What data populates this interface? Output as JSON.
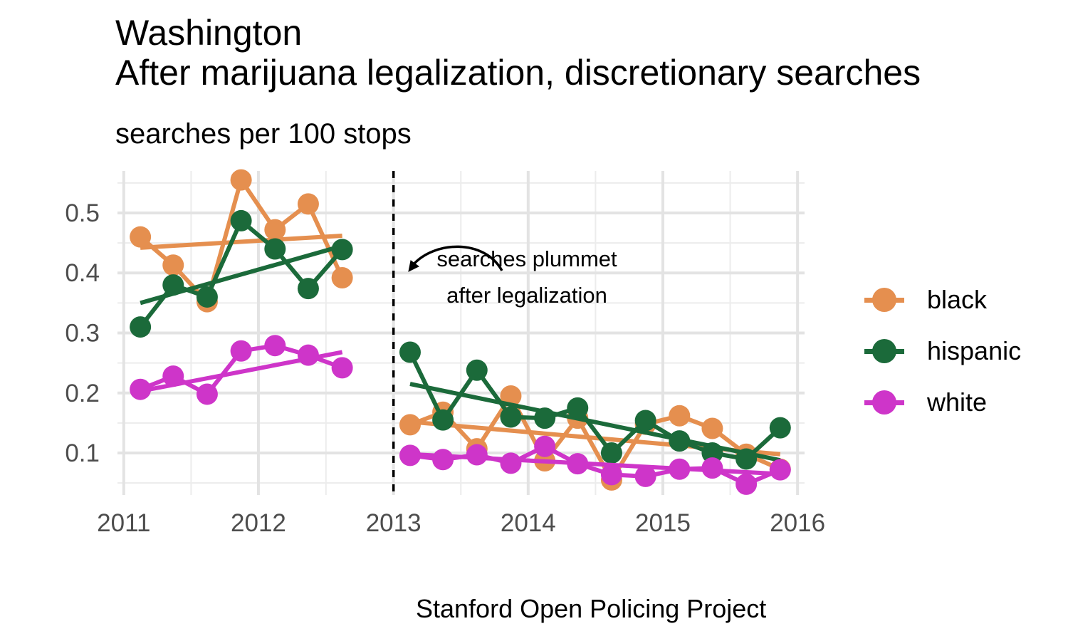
{
  "title": "Washington\nAfter marijuana legalization, discretionary searches",
  "subtitle": "searches per 100 stops",
  "caption": "Stanford Open Policing Project",
  "chart_data": {
    "type": "line",
    "x_axis": {
      "type": "date",
      "ticks": [
        "2011",
        "2012",
        "2013",
        "2014",
        "2015",
        "2016"
      ],
      "range": [
        "2010-12-15",
        "2016-01-20"
      ]
    },
    "y_axis": {
      "ticks": [
        "0.1",
        "0.2",
        "0.3",
        "0.4",
        "0.5"
      ],
      "range": [
        0.03,
        0.57
      ]
    },
    "grid": true,
    "legend_position": "right",
    "legalization_date": "2013-01-01",
    "annotation": {
      "lines": [
        "searches plummet",
        "after legalization"
      ]
    },
    "series": [
      {
        "name": "black",
        "color": "#E58F4F",
        "points": [
          [
            "2011-02-15",
            0.46
          ],
          [
            "2011-05-15",
            0.413
          ],
          [
            "2011-08-15",
            0.352
          ],
          [
            "2011-11-15",
            0.555
          ],
          [
            "2012-02-15",
            0.472
          ],
          [
            "2012-05-15",
            0.515
          ],
          [
            "2012-08-15",
            0.392
          ],
          [
            "2013-02-15",
            0.147
          ],
          [
            "2013-05-15",
            0.168
          ],
          [
            "2013-08-15",
            0.107
          ],
          [
            "2013-11-15",
            0.195
          ],
          [
            "2014-02-15",
            0.087
          ],
          [
            "2014-05-15",
            0.158
          ],
          [
            "2014-08-15",
            0.055
          ],
          [
            "2014-11-15",
            0.148
          ],
          [
            "2015-02-15",
            0.162
          ],
          [
            "2015-05-15",
            0.141
          ],
          [
            "2015-08-15",
            0.098
          ],
          [
            "2015-11-15",
            0.073
          ]
        ],
        "trend_pre": [
          [
            "2011-02-15",
            0.442
          ],
          [
            "2012-08-15",
            0.462
          ]
        ],
        "trend_post": [
          [
            "2013-02-15",
            0.152
          ],
          [
            "2015-11-15",
            0.098
          ]
        ]
      },
      {
        "name": "hispanic",
        "color": "#1B6A3A",
        "points": [
          [
            "2011-02-15",
            0.31
          ],
          [
            "2011-05-15",
            0.38
          ],
          [
            "2011-08-15",
            0.36
          ],
          [
            "2011-11-15",
            0.487
          ],
          [
            "2012-02-15",
            0.44
          ],
          [
            "2012-05-15",
            0.374
          ],
          [
            "2012-08-15",
            0.439
          ],
          [
            "2013-02-15",
            0.268
          ],
          [
            "2013-05-15",
            0.155
          ],
          [
            "2013-08-15",
            0.238
          ],
          [
            "2013-11-15",
            0.16
          ],
          [
            "2014-02-15",
            0.158
          ],
          [
            "2014-05-15",
            0.175
          ],
          [
            "2014-08-15",
            0.1
          ],
          [
            "2014-11-15",
            0.154
          ],
          [
            "2015-02-15",
            0.12
          ],
          [
            "2015-05-15",
            0.1
          ],
          [
            "2015-08-15",
            0.09
          ],
          [
            "2015-11-15",
            0.142
          ]
        ],
        "trend_pre": [
          [
            "2011-02-15",
            0.35
          ],
          [
            "2012-08-15",
            0.445
          ]
        ],
        "trend_post": [
          [
            "2013-02-15",
            0.215
          ],
          [
            "2015-11-15",
            0.088
          ]
        ]
      },
      {
        "name": "white",
        "color": "#CE35C9",
        "points": [
          [
            "2011-02-15",
            0.206
          ],
          [
            "2011-05-15",
            0.228
          ],
          [
            "2011-08-15",
            0.198
          ],
          [
            "2011-11-15",
            0.27
          ],
          [
            "2012-02-15",
            0.279
          ],
          [
            "2012-05-15",
            0.263
          ],
          [
            "2012-08-15",
            0.242
          ],
          [
            "2013-02-15",
            0.096
          ],
          [
            "2013-05-15",
            0.089
          ],
          [
            "2013-08-15",
            0.097
          ],
          [
            "2013-11-15",
            0.083
          ],
          [
            "2014-02-15",
            0.111
          ],
          [
            "2014-05-15",
            0.082
          ],
          [
            "2014-08-15",
            0.064
          ],
          [
            "2014-11-15",
            0.061
          ],
          [
            "2015-02-15",
            0.073
          ],
          [
            "2015-05-15",
            0.075
          ],
          [
            "2015-08-15",
            0.048
          ],
          [
            "2015-11-15",
            0.072
          ]
        ],
        "trend_pre": [
          [
            "2011-02-15",
            0.203
          ],
          [
            "2012-08-15",
            0.268
          ]
        ],
        "trend_post": [
          [
            "2013-02-15",
            0.098
          ],
          [
            "2015-11-15",
            0.065
          ]
        ]
      }
    ]
  }
}
